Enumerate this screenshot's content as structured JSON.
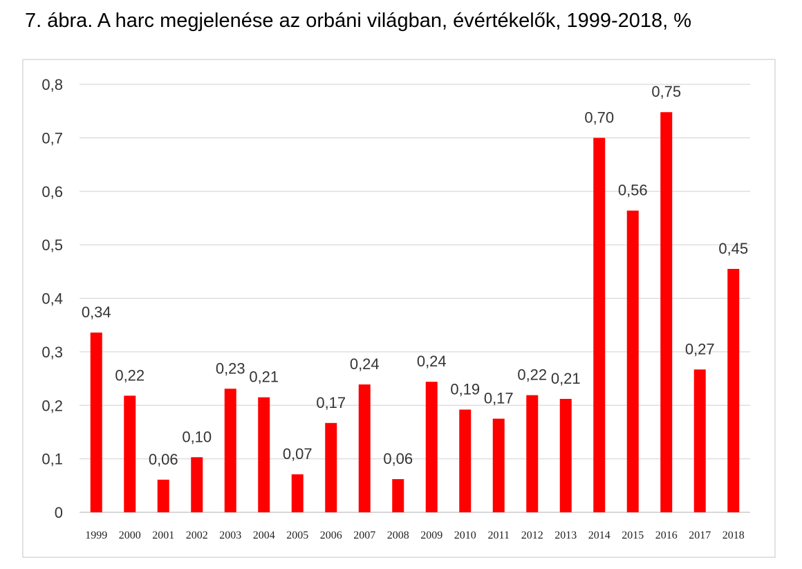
{
  "chart_data": {
    "type": "bar",
    "title": "7. ábra. A harc megjelenése az orbáni világban, évértékelők, 1999-2018, %",
    "xlabel": "",
    "ylabel": "",
    "ylim": [
      0,
      0.8
    ],
    "yticks": [
      0,
      0.1,
      0.2,
      0.3,
      0.4,
      0.5,
      0.6,
      0.7,
      0.8
    ],
    "ytick_labels": [
      "0",
      "0,1",
      "0,2",
      "0,3",
      "0,4",
      "0,5",
      "0,6",
      "0,7",
      "0,8"
    ],
    "grid": true,
    "legend": "none",
    "bar_color": "#ff0000",
    "categories": [
      "1999",
      "2000",
      "2001",
      "2002",
      "2003",
      "2004",
      "2005",
      "2006",
      "2007",
      "2008",
      "2009",
      "2010",
      "2011",
      "2012",
      "2013",
      "2014",
      "2015",
      "2016",
      "2017",
      "2018"
    ],
    "values": [
      0.336,
      0.218,
      0.061,
      0.103,
      0.231,
      0.215,
      0.071,
      0.167,
      0.239,
      0.062,
      0.244,
      0.192,
      0.175,
      0.219,
      0.212,
      0.7,
      0.564,
      0.748,
      0.267,
      0.455
    ],
    "data_labels": [
      "0,34",
      "0,22",
      "0,06",
      "0,10",
      "0,23",
      "0,21",
      "0,07",
      "0,17",
      "0,24",
      "0,06",
      "0,24",
      "0,19",
      "0,17",
      "0,22",
      "0,21",
      "0,70",
      "0,56",
      "0,75",
      "0,27",
      "0,45"
    ]
  }
}
